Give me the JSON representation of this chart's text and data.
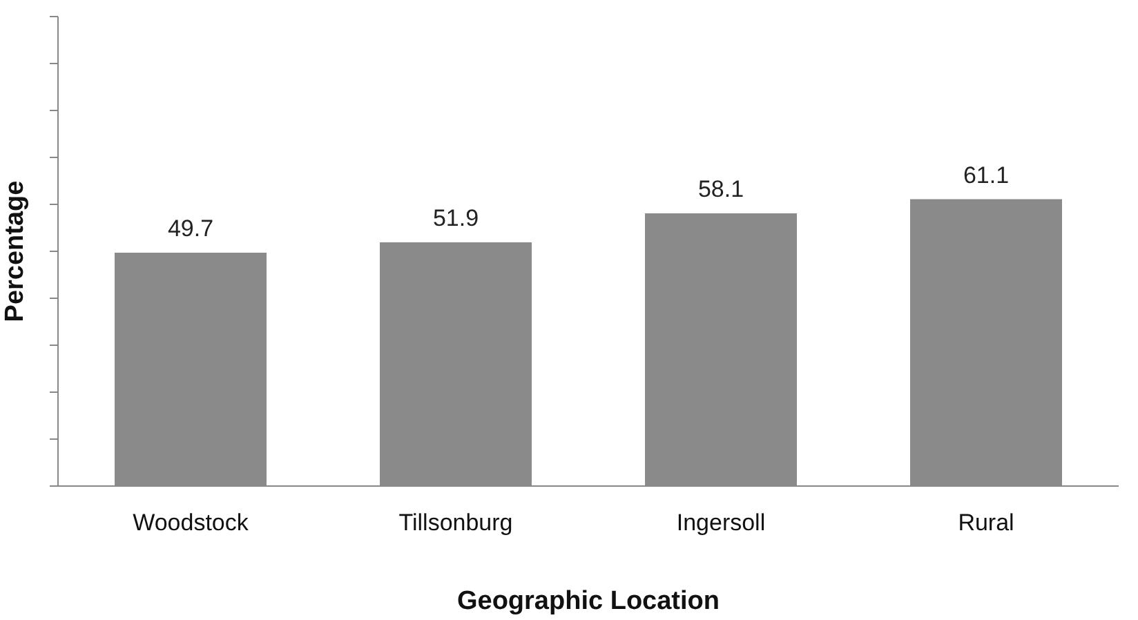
{
  "chart_data": {
    "type": "bar",
    "xlabel": "Geographic Location",
    "ylabel": "Percentage",
    "categories": [
      "Woodstock",
      "Tillsonburg",
      "Ingersoll",
      "Rural"
    ],
    "values": [
      49.7,
      51.9,
      58.1,
      61.1
    ],
    "color": "#8a8a8a",
    "ylim": [
      0,
      100
    ],
    "yticks": [
      {
        "value": 0,
        "label": null
      },
      {
        "value": 10,
        "label": null
      },
      {
        "value": 20,
        "label": null
      },
      {
        "value": 30,
        "label": null
      },
      {
        "value": 40,
        "label": null
      },
      {
        "value": 50,
        "label": null
      },
      {
        "value": 60,
        "label": null
      },
      {
        "value": 70,
        "label": null
      },
      {
        "value": 80,
        "label": null
      },
      {
        "value": 90,
        "label": null
      },
      {
        "value": 100,
        "label": null
      }
    ],
    "tick_labels": "x",
    "data_labels": true,
    "grid": false
  }
}
